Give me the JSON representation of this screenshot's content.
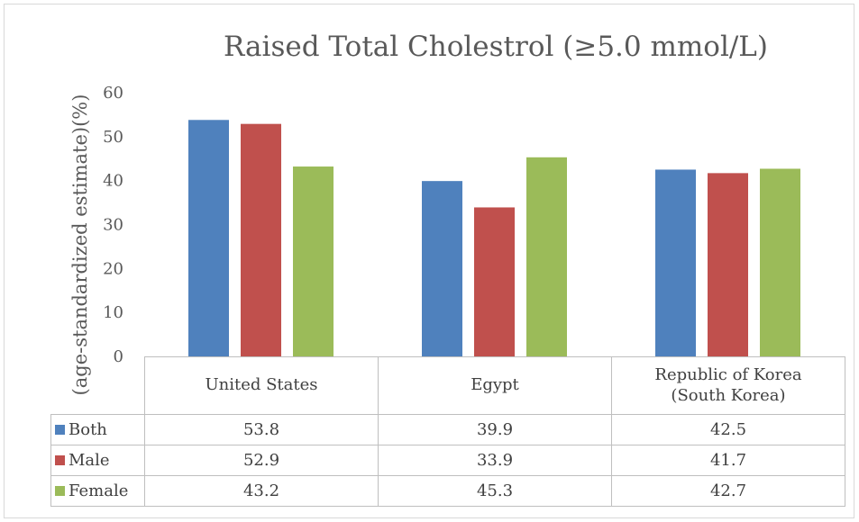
{
  "chart_data": {
    "type": "bar",
    "title": "Raised Total Cholestrol (≥5.0 mmol/L)",
    "xlabel": "",
    "ylabel": "(age-standardized estimate)(%)",
    "ylim": [
      0,
      60
    ],
    "yticks": [
      0,
      10,
      20,
      30,
      40,
      50,
      60
    ],
    "grid": false,
    "legend": "data-table",
    "categories": [
      "United States",
      "Egypt",
      "Republic of Korea\n(South Korea)"
    ],
    "series": [
      {
        "name": "Both",
        "color": "#4f81bd",
        "values": [
          53.8,
          39.9,
          42.5
        ]
      },
      {
        "name": "Male",
        "color": "#c0504d",
        "values": [
          52.9,
          33.9,
          41.7
        ]
      },
      {
        "name": "Female",
        "color": "#9bbb59",
        "values": [
          43.2,
          45.3,
          42.7
        ]
      }
    ],
    "table_values": [
      [
        "53.8",
        "39.9",
        "42.5"
      ],
      [
        "52.9",
        "33.9",
        "41.7"
      ],
      [
        "43.2",
        "45.3",
        "42.7"
      ]
    ]
  }
}
